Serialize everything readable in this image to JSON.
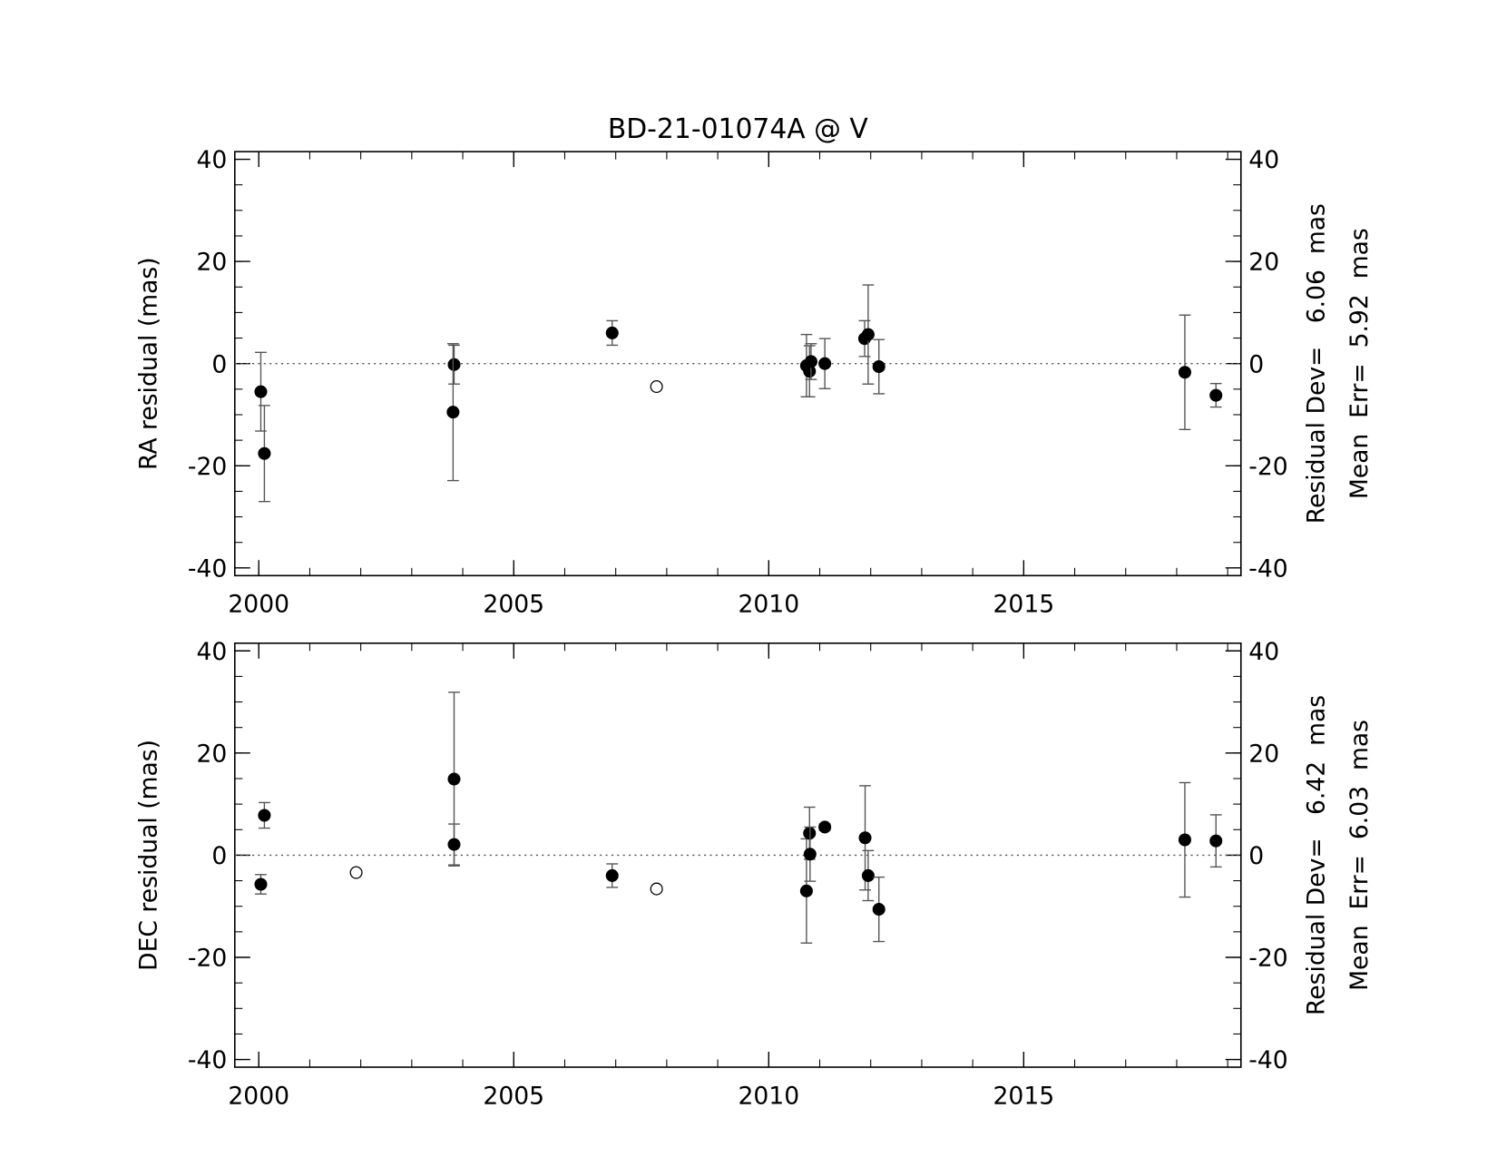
{
  "chart_data": [
    {
      "type": "scatter",
      "title": "BD-21-01074A @ V",
      "y_label": "RA residual (mas)",
      "annotations": [
        "Residual Dev=   6.06  mas",
        "Mean  Err=  5.92  mas"
      ],
      "xlim": [
        1999.53,
        2019.26
      ],
      "xticks": [
        2000,
        2005,
        2010,
        2015
      ],
      "ylim": [
        -41.5,
        41.5
      ],
      "yticks": [
        -40,
        -20,
        0,
        20,
        40
      ],
      "y2lim": [
        -41.5,
        41.5
      ],
      "y2ticks": [
        -40,
        -20,
        0,
        20,
        40
      ],
      "hline": 0,
      "series": [
        {
          "color": "#000000",
          "filled": true,
          "x": [
            2000.04,
            2000.11,
            2003.83,
            2003.81,
            2006.93,
            2010.74,
            2010.8,
            2010.83,
            2011.1,
            2011.88,
            2011.95,
            2012.16,
            2018.16,
            2018.77
          ],
          "values": [
            -5.5,
            -17.6,
            -0.2,
            -9.5,
            6.0,
            -0.4,
            -1.5,
            0.4,
            0.0,
            4.9,
            5.7,
            -0.6,
            -1.7,
            -6.2
          ],
          "errors": [
            7.7,
            9.4,
            3.8,
            13.4,
            2.4,
            6.1,
            5.0,
            3.5,
            4.9,
            3.5,
            9.7,
            5.3,
            11.2,
            2.3
          ]
        },
        {
          "color": "#000000",
          "filled": false,
          "x": [
            2007.8
          ],
          "values": [
            -4.5
          ]
        }
      ]
    },
    {
      "type": "scatter",
      "y_label": "DEC residual (mas)",
      "annotations": [
        "Residual Dev=   6.42  mas",
        "Mean  Err=  6.03  mas"
      ],
      "xlim": [
        1999.53,
        2019.26
      ],
      "xticks": [
        2000,
        2005,
        2010,
        2015
      ],
      "ylim": [
        -41.5,
        41.5
      ],
      "yticks": [
        -40,
        -20,
        0,
        20,
        40
      ],
      "y2lim": [
        -41.5,
        41.5
      ],
      "y2ticks": [
        -40,
        -20,
        0,
        20,
        40
      ],
      "hline": 0,
      "series": [
        {
          "color": "#000000",
          "filled": true,
          "x": [
            2000.04,
            2000.11,
            2003.83,
            2003.83,
            2006.93,
            2010.74,
            2010.8,
            2010.81,
            2011.1,
            2011.89,
            2011.95,
            2012.16,
            2018.16,
            2018.77
          ],
          "values": [
            -5.7,
            7.8,
            14.9,
            2.1,
            -4.0,
            -7.0,
            4.3,
            0.2,
            5.5,
            3.4,
            -4.0,
            -10.6,
            3.0,
            2.8
          ],
          "errors": [
            1.9,
            2.5,
            17.0,
            4.0,
            2.3,
            10.2,
            5.1,
            5.3,
            0.6,
            10.2,
            4.9,
            6.3,
            11.2,
            5.1
          ]
        },
        {
          "color": "#000000",
          "filled": false,
          "x": [
            2001.91,
            2007.8
          ],
          "values": [
            -3.4,
            -6.6
          ]
        }
      ]
    }
  ]
}
